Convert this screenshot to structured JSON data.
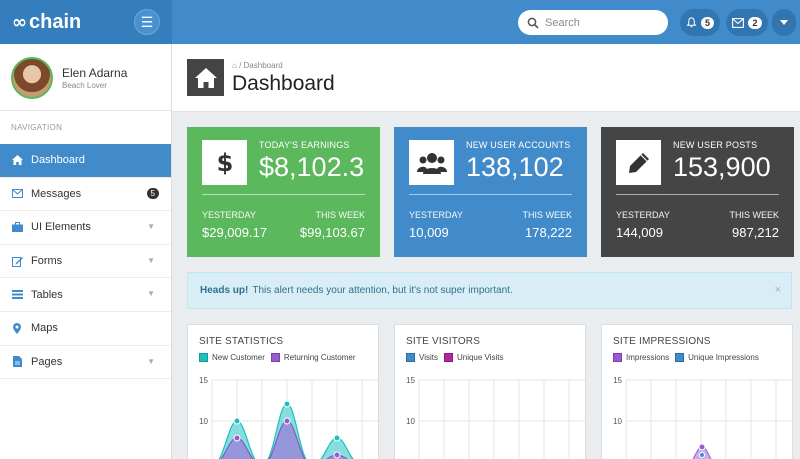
{
  "header": {
    "logo_text": "chain",
    "logo_mark": "∞",
    "menu_icon": "☰",
    "search_placeholder": "Search",
    "notifications_count": "5",
    "messages_count": "2"
  },
  "sidebar": {
    "profile_name": "Elen Adarna",
    "profile_tagline": "Beach Lover",
    "nav_heading": "NAVIGATION",
    "items": [
      {
        "label": "Dashboard",
        "icon": "home-icon"
      },
      {
        "label": "Messages",
        "icon": "envelope-icon",
        "badge": "5"
      },
      {
        "label": "UI Elements",
        "icon": "briefcase-icon"
      },
      {
        "label": "Forms",
        "icon": "edit-icon"
      },
      {
        "label": "Tables",
        "icon": "list-icon"
      },
      {
        "label": "Maps",
        "icon": "map-marker-icon"
      },
      {
        "label": "Pages",
        "icon": "file-icon"
      }
    ]
  },
  "page": {
    "breadcrumb": "Dashboard",
    "title": "Dashboard"
  },
  "stats": [
    {
      "label": "TODAY'S EARNINGS",
      "value": "$8,102.3",
      "left_label": "YESTERDAY",
      "left_value": "$29,009.17",
      "right_label": "THIS WEEK",
      "right_value": "$99,103.67",
      "icon": "dollar-icon",
      "color": "#5cb85c"
    },
    {
      "label": "NEW USER ACCOUNTS",
      "value": "138,102",
      "left_label": "YESTERDAY",
      "left_value": "10,009",
      "right_label": "THIS WEEK",
      "right_value": "178,222",
      "icon": "users-icon",
      "color": "#428bca"
    },
    {
      "label": "NEW USER POSTS",
      "value": "153,900",
      "left_label": "YESTERDAY",
      "left_value": "144,009",
      "right_label": "THIS WEEK",
      "right_value": "987,212",
      "icon": "pencil-icon",
      "color": "#454545"
    }
  ],
  "alert": {
    "strong": "Heads up!",
    "text": "This alert needs your attention, but it's not super important.",
    "close": "×"
  },
  "panels": [
    {
      "title": "SITE STATISTICS",
      "legend": [
        {
          "name": "New Customer",
          "color": "#1fbfbf"
        },
        {
          "name": "Returning Customer",
          "color": "#9b59d0"
        }
      ],
      "yticks": [
        "15",
        "10"
      ]
    },
    {
      "title": "SITE VISITORS",
      "legend": [
        {
          "name": "Visits",
          "color": "#428bca"
        },
        {
          "name": "Unique Visits",
          "color": "#b0279e"
        }
      ],
      "yticks": [
        "15",
        "10"
      ]
    },
    {
      "title": "SITE IMPRESSIONS",
      "legend": [
        {
          "name": "Impressions",
          "color": "#9b59d0"
        },
        {
          "name": "Unique Impressions",
          "color": "#428bca"
        }
      ],
      "yticks": [
        "15",
        "10"
      ]
    }
  ]
}
